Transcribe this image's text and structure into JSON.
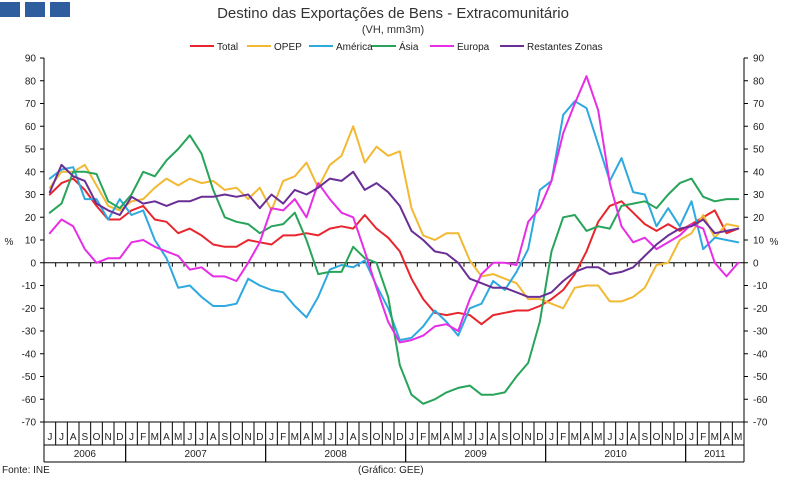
{
  "page": {
    "source": "Fonte: INE",
    "credit": "(Gráfico: GEE)"
  },
  "colors": {
    "logo": "#2f5e9e",
    "axis": "#000000",
    "grid": "#000000"
  },
  "chart_data": {
    "type": "line",
    "title": "Destino das Exportações de Bens - Extracomunitário",
    "subtitle": "(VH, mm3m)",
    "ylabel": "%",
    "ylabel_right": "%",
    "ylim": [
      -70,
      90
    ],
    "yticks": [
      -70,
      -60,
      -50,
      -40,
      -30,
      -20,
      -10,
      0,
      10,
      20,
      30,
      40,
      50,
      60,
      70,
      80,
      90
    ],
    "grid": false,
    "legend_position": "top",
    "x": [
      "J",
      "J",
      "A",
      "S",
      "O",
      "N",
      "D",
      "J",
      "F",
      "M",
      "A",
      "M",
      "J",
      "J",
      "A",
      "S",
      "O",
      "N",
      "D",
      "J",
      "F",
      "M",
      "A",
      "M",
      "J",
      "J",
      "A",
      "S",
      "O",
      "N",
      "D",
      "J",
      "F",
      "M",
      "A",
      "M",
      "J",
      "J",
      "A",
      "S",
      "O",
      "N",
      "D",
      "J",
      "F",
      "M",
      "A",
      "M",
      "J",
      "J",
      "A",
      "S",
      "O",
      "N",
      "D",
      "J",
      "F",
      "M",
      "A",
      "M"
    ],
    "years": [
      {
        "label": "2006",
        "start": 0,
        "end": 6
      },
      {
        "label": "2007",
        "start": 7,
        "end": 18
      },
      {
        "label": "2008",
        "start": 19,
        "end": 30
      },
      {
        "label": "2009",
        "start": 31,
        "end": 42
      },
      {
        "label": "2010",
        "start": 43,
        "end": 54
      },
      {
        "label": "2011",
        "start": 55,
        "end": 59
      }
    ],
    "series": [
      {
        "name": "Total",
        "color": "#e8262e",
        "values": [
          30,
          35,
          37,
          32,
          25,
          19,
          19,
          23,
          25,
          19,
          18,
          13,
          15,
          12,
          8,
          7,
          7,
          10,
          9,
          8,
          12,
          12,
          13,
          12,
          15,
          16,
          15,
          21,
          15,
          11,
          5,
          -7,
          -16,
          -22,
          -23,
          -22,
          -23,
          -27,
          -23,
          -22,
          -21,
          -21,
          -19,
          -16,
          -12,
          -5,
          5,
          18,
          25,
          27,
          22,
          17,
          14,
          17,
          14,
          17,
          20,
          23,
          13,
          15
        ]
      },
      {
        "name": "OPEP",
        "color": "#f2b934",
        "values": [
          33,
          40,
          40,
          43,
          34,
          25,
          23,
          27,
          28,
          33,
          37,
          34,
          37,
          35,
          36,
          32,
          33,
          28,
          33,
          23,
          36,
          38,
          44,
          33,
          43,
          47,
          60,
          44,
          51,
          47,
          49,
          24,
          12,
          10,
          13,
          13,
          1,
          -6,
          -5,
          -7,
          -9,
          -16,
          -16,
          -18,
          -20,
          -11,
          -10,
          -10,
          -17,
          -17,
          -15,
          -11,
          -1,
          0,
          10,
          13,
          21,
          11,
          17,
          16
        ]
      },
      {
        "name": "América",
        "color": "#2da9e0",
        "values": [
          37,
          41,
          42,
          28,
          28,
          19,
          28,
          21,
          23,
          10,
          2,
          -11,
          -10,
          -15,
          -19,
          -19,
          -18,
          -7,
          -10,
          -12,
          -13,
          -19,
          -24,
          -15,
          -3,
          -1,
          -2,
          1,
          -10,
          -20,
          -34,
          -33,
          -28,
          -21,
          -26,
          -32,
          -20,
          -18,
          -8,
          -12,
          -4,
          6,
          32,
          36,
          65,
          71,
          68,
          52,
          36,
          46,
          31,
          30,
          16,
          24,
          16,
          27,
          6,
          11,
          10,
          9
        ]
      },
      {
        "name": "Ásia",
        "color": "#27a459",
        "values": [
          22,
          26,
          40,
          40,
          39,
          27,
          24,
          30,
          40,
          38,
          45,
          50,
          56,
          48,
          32,
          20,
          18,
          17,
          13,
          16,
          17,
          22,
          10,
          -5,
          -4,
          -4,
          7,
          2,
          0,
          -15,
          -45,
          -58,
          -62,
          -60,
          -57,
          -55,
          -54,
          -58,
          -58,
          -57,
          -50,
          -44,
          -26,
          5,
          20,
          21,
          14,
          16,
          15,
          25,
          26,
          27,
          24,
          30,
          35,
          37,
          29,
          27,
          28,
          28
        ]
      },
      {
        "name": "Europa",
        "color": "#e62ee6",
        "values": [
          13,
          19,
          16,
          6,
          0,
          2,
          2,
          9,
          10,
          7,
          5,
          3,
          -3,
          -2,
          -6,
          -6,
          -8,
          0,
          9,
          24,
          23,
          28,
          20,
          35,
          28,
          22,
          20,
          5,
          -11,
          -26,
          -35,
          -34,
          -32,
          -28,
          -27,
          -30,
          -16,
          -5,
          0,
          0,
          -1,
          18,
          24,
          36,
          57,
          70,
          82,
          67,
          35,
          16,
          9,
          11,
          6,
          9,
          12,
          17,
          15,
          0,
          -6,
          0
        ]
      },
      {
        "name": "Restantes Zonas",
        "color": "#6a2f94",
        "values": [
          31,
          43,
          38,
          36,
          26,
          23,
          21,
          29,
          26,
          27,
          25,
          27,
          27,
          29,
          29,
          30,
          29,
          30,
          24,
          30,
          26,
          32,
          30,
          33,
          37,
          36,
          40,
          32,
          35,
          31,
          25,
          14,
          10,
          5,
          4,
          0,
          -7,
          -9,
          -11,
          -11,
          -13,
          -15,
          -15,
          -13,
          -8,
          -4,
          -2,
          -2,
          -5,
          -4,
          -2,
          3,
          8,
          12,
          15,
          16,
          19,
          13,
          14,
          15
        ]
      }
    ]
  }
}
